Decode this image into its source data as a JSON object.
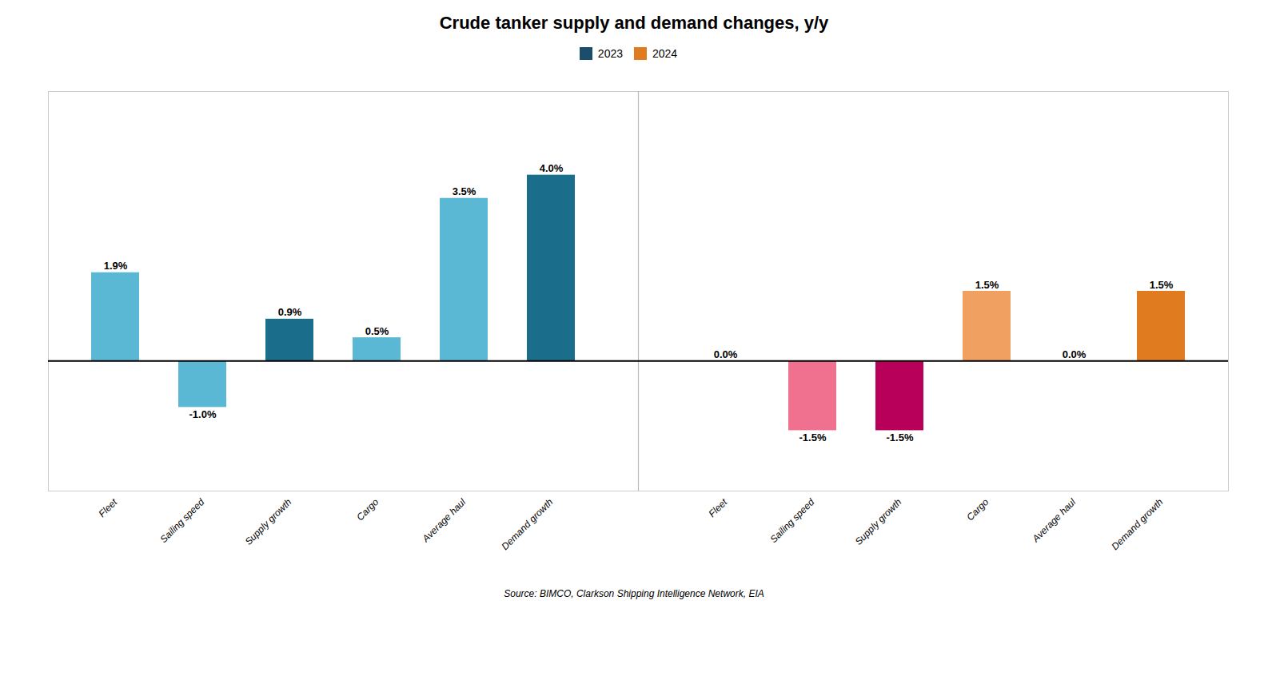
{
  "chart_data": {
    "type": "bar",
    "title": "Crude tanker supply and demand changes, y/y",
    "caption": "Source: BIMCO, Clarkson Shipping Intelligence Network, EIA",
    "categories": [
      "Fleet",
      "Sailing speed",
      "Supply growth",
      "Cargo",
      "Average haul",
      "Demand growth",
      "Fleet",
      "Sailing speed",
      "Supply growth",
      "Cargo",
      "Average haul",
      "Demand growth"
    ],
    "series": [
      {
        "name": "2023",
        "color": "#1A4E6C",
        "values": [
          1.9,
          -1.0,
          0.9,
          0.5,
          3.5,
          4.0,
          null,
          null,
          null,
          null,
          null,
          null
        ],
        "value_labels": [
          "1.9%",
          "-1.0%",
          "0.9%",
          "0.5%",
          "3.5%",
          "4.0%",
          null,
          null,
          null,
          null,
          null,
          null
        ],
        "colors": [
          "#5BB8D4",
          "#5BB8D4",
          "#1A6E8C",
          "#5BB8D4",
          "#5BB8D4",
          "#1A6E8C",
          null,
          null,
          null,
          null,
          null,
          null
        ]
      },
      {
        "name": "2024",
        "color": "#E07B20",
        "values": [
          null,
          null,
          null,
          null,
          null,
          null,
          0.0,
          -1.5,
          -1.5,
          1.5,
          0.0,
          1.5
        ],
        "value_labels": [
          null,
          null,
          null,
          null,
          null,
          null,
          "0.0%",
          "-1.5%",
          "-1.5%",
          "1.5%",
          "0.0%",
          "1.5%"
        ],
        "colors": [
          null,
          null,
          null,
          null,
          null,
          null,
          "#E07B20",
          "#F07090",
          "#B8005A",
          "#F0A060",
          "#E07B20",
          "#E07B20"
        ]
      }
    ],
    "ylim": [
      -2.8,
      5.8
    ],
    "tick_labels": "x",
    "data_labels": true,
    "legend": "top",
    "grid": false
  }
}
